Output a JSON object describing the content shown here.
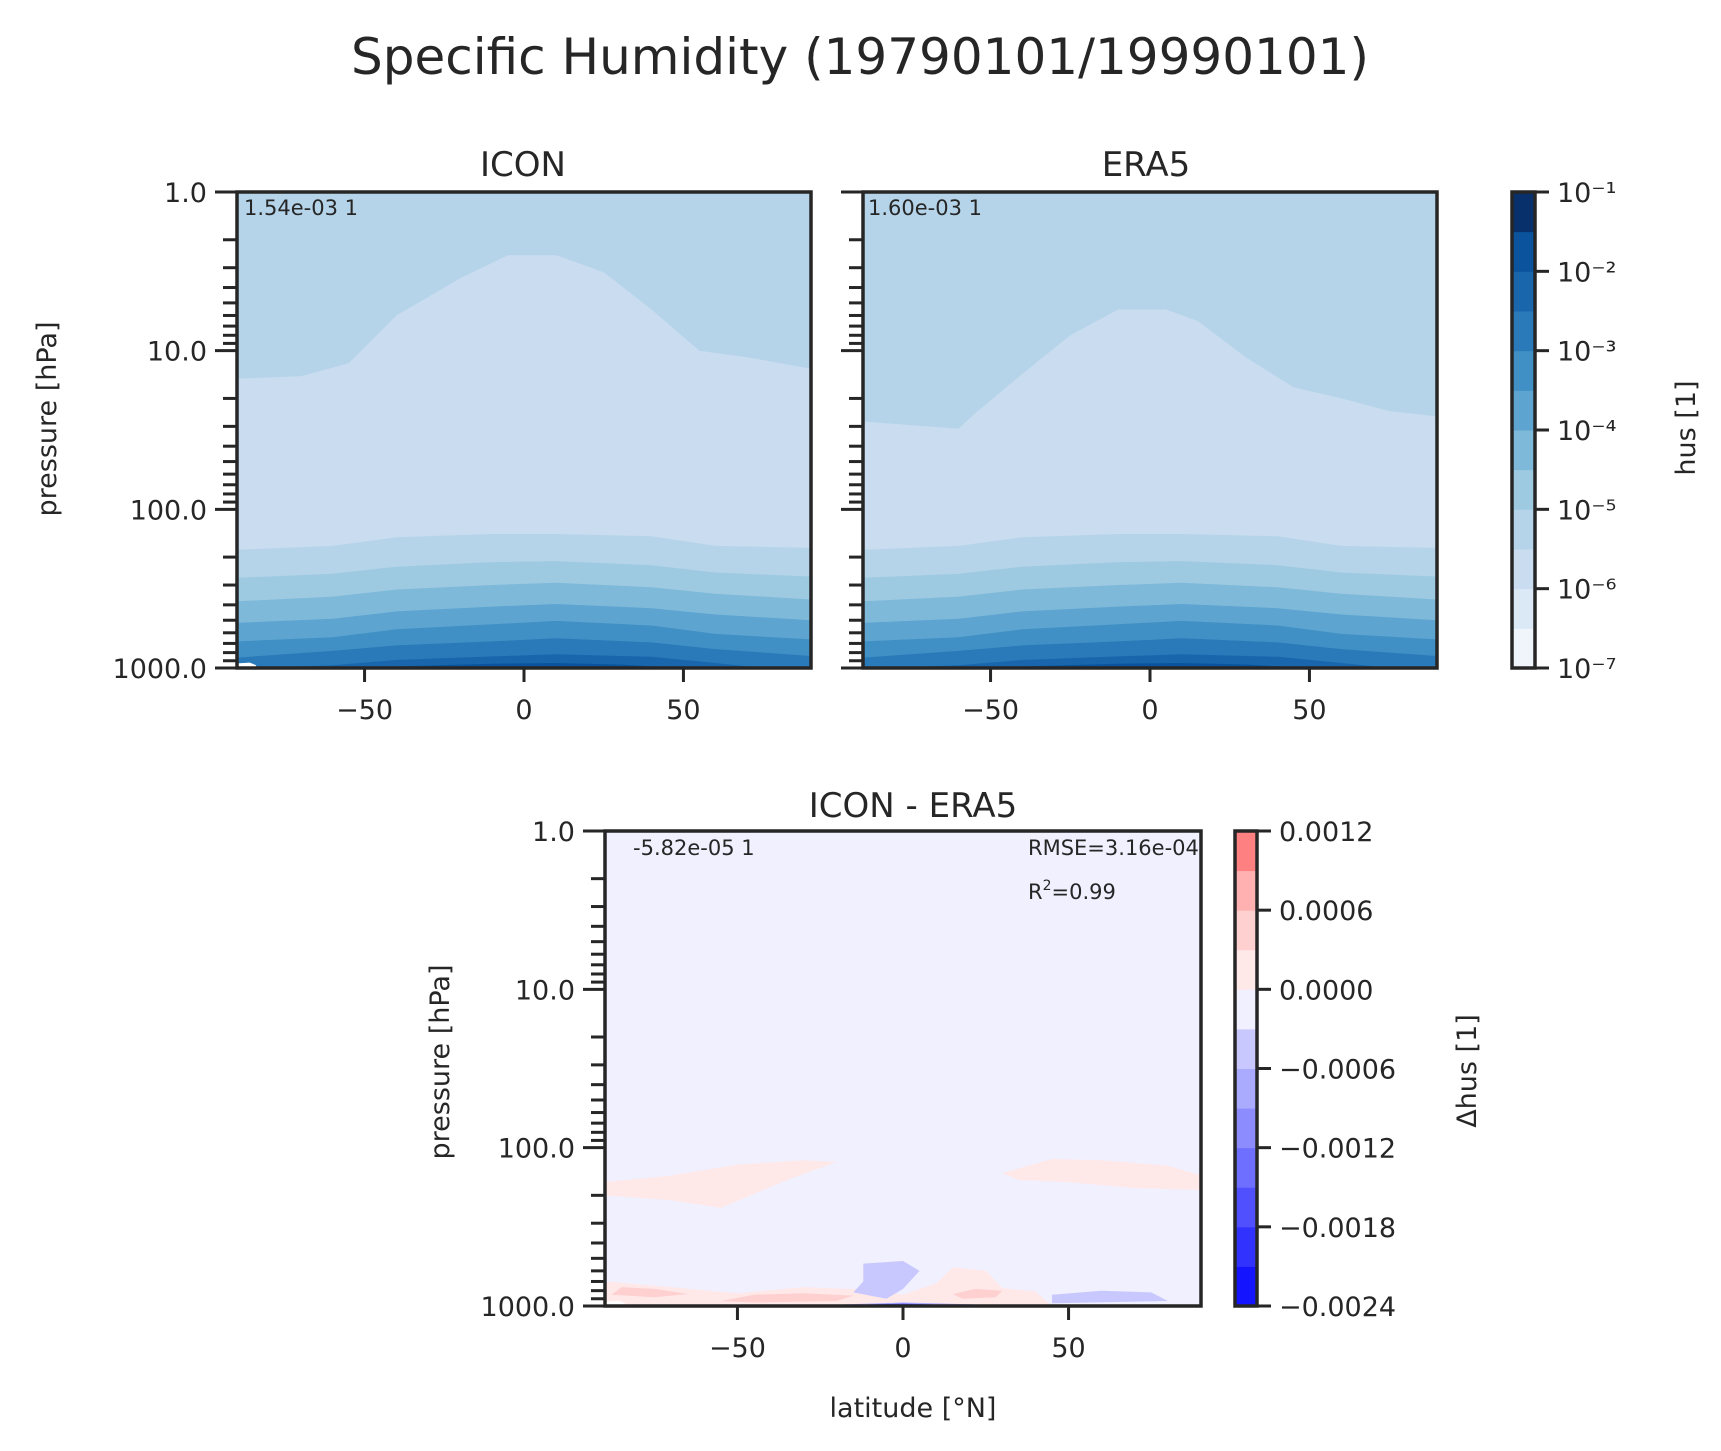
{
  "figure": {
    "suptitle": "Specific Humidity (19790101/19990101)"
  },
  "colors": {
    "blues": [
      "#f0f5fc",
      "#dbe9f6",
      "#cadcef",
      "#b5d4e9",
      "#9ecae1",
      "#7fb9da",
      "#5da4d0",
      "#4090c5",
      "#2a7ab9",
      "#1966ad",
      "#0b549d",
      "#08306b"
    ],
    "diff_levels": [
      "#1414ff",
      "#3232ff",
      "#5050ff",
      "#6e6eff",
      "#8c8cff",
      "#aaaaff",
      "#c8c8ff",
      "#f0f0ff",
      "#ffe8e8",
      "#ffd0d0",
      "#ffb0b0",
      "#ff8080"
    ],
    "frame": "#262626"
  },
  "chart_data": [
    {
      "type": "contour",
      "title": "ICON",
      "xlabel": "",
      "ylabel": "pressure [hPa]",
      "xlim": [
        -90,
        90
      ],
      "ylim": [
        1000.0,
        1.0
      ],
      "y_scale": "log",
      "x_ticks": [
        "−50",
        "0",
        "50"
      ],
      "y_ticks": [
        "1.0",
        "10.0",
        "100.0",
        "1000.0"
      ],
      "annotation": "1.54e-03 1",
      "colorbar_label": "hus [1]",
      "colorbar_ticks": [
        "10⁻¹",
        "10⁻²",
        "10⁻³",
        "10⁻⁴",
        "10⁻⁵",
        "10⁻⁶",
        "10⁻⁷"
      ]
    },
    {
      "type": "contour",
      "title": "ERA5",
      "xlabel": "",
      "ylabel": "",
      "xlim": [
        -90,
        90
      ],
      "ylim": [
        1000.0,
        1.0
      ],
      "y_scale": "log",
      "x_ticks": [
        "−50",
        "0",
        "50"
      ],
      "annotation": "1.60e-03 1"
    },
    {
      "type": "contour",
      "title": "ICON - ERA5",
      "xlabel": "latitude [°N]",
      "ylabel": "pressure [hPa]",
      "xlim": [
        -90,
        90
      ],
      "ylim": [
        1000.0,
        1.0
      ],
      "y_scale": "log",
      "x_ticks": [
        "−50",
        "0",
        "50"
      ],
      "y_ticks": [
        "1.0",
        "10.0",
        "100.0",
        "1000.0"
      ],
      "annotation": "-5.82e-05 1",
      "rmse": "RMSE=3.16e-04",
      "r2_prefix": "R",
      "r2_sup": "2",
      "r2_value": "=0.99",
      "colorbar_label": "Δhus [1]",
      "colorbar_ticks": [
        "0.0012",
        "0.0006",
        "0.0000",
        "−0.0006",
        "−0.0012",
        "−0.0018",
        "−0.0024"
      ]
    }
  ]
}
